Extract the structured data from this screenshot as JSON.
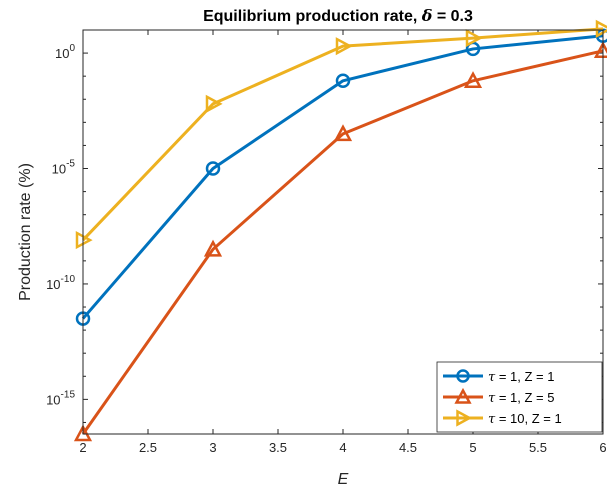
{
  "chart_data": {
    "type": "line",
    "title_prefix": "Equilibrium production rate, ",
    "title_symbol": "δ",
    "title_suffix": " = 0.3",
    "xlabel": "E",
    "ylabel": "Production rate (%)",
    "x_scale": "linear",
    "y_scale": "log",
    "xlim": [
      2,
      6
    ],
    "ylim_exponent": [
      -16.5,
      1
    ],
    "x_ticks": [
      "2",
      "2.5",
      "3",
      "3.5",
      "4",
      "4.5",
      "5",
      "5.5",
      "6"
    ],
    "y_ticks": [
      {
        "base": "10",
        "exp": "0",
        "value": 0
      },
      {
        "base": "10",
        "exp": "-5",
        "value": -5
      },
      {
        "base": "10",
        "exp": "-10",
        "value": -10
      },
      {
        "base": "10",
        "exp": "-15",
        "value": -15
      }
    ],
    "x": [
      2,
      3,
      4,
      5,
      6
    ],
    "series": [
      {
        "name_symbol": "τ",
        "name_rest": " = 1, Z = 1",
        "color": "#0072BD",
        "marker": "circle",
        "log10_values": [
          -11.5,
          -5.0,
          -1.2,
          0.18,
          0.75
        ]
      },
      {
        "name_symbol": "τ",
        "name_rest": " = 1, Z = 5",
        "color": "#D95319",
        "marker": "triangle-up",
        "log10_values": [
          -16.5,
          -8.5,
          -3.5,
          -1.2,
          0.1
        ]
      },
      {
        "name_symbol": "τ",
        "name_rest": " = 10, Z = 1",
        "color": "#EDB120",
        "marker": "triangle-right",
        "log10_values": [
          -8.1,
          -2.2,
          0.3,
          0.65,
          1.05
        ]
      }
    ],
    "grid": false,
    "legend_position": "bottom-right"
  }
}
